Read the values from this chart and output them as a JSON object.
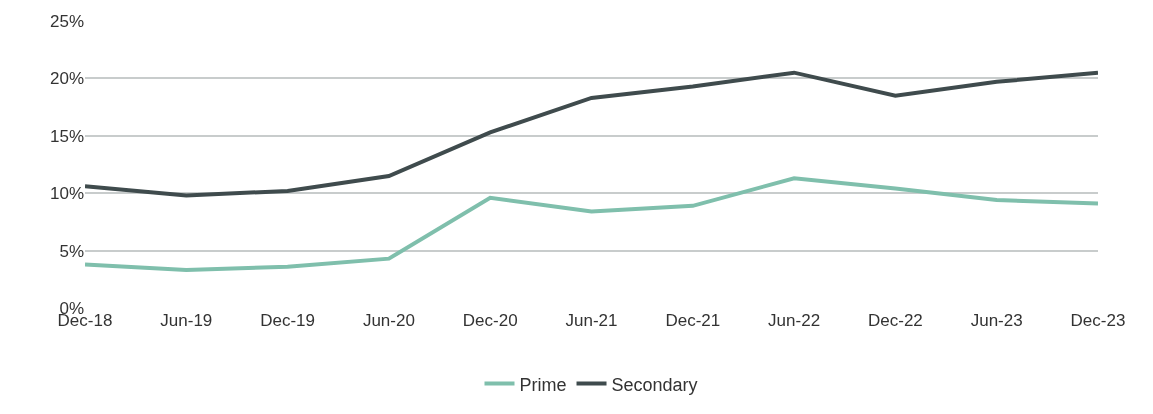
{
  "chart_data": {
    "type": "line",
    "categories": [
      "Dec-18",
      "Jun-19",
      "Dec-19",
      "Jun-20",
      "Dec-20",
      "Jun-21",
      "Dec-21",
      "Jun-22",
      "Dec-22",
      "Jun-23",
      "Dec-23"
    ],
    "series": [
      {
        "name": "Prime",
        "color": "#7fbfac",
        "values": [
          3.8,
          3.3,
          3.6,
          4.3,
          9.6,
          8.4,
          8.9,
          11.3,
          10.4,
          9.4,
          9.1
        ]
      },
      {
        "name": "Secondary",
        "color": "#3f4b4d",
        "values": [
          10.6,
          9.8,
          10.2,
          11.5,
          15.3,
          18.3,
          19.3,
          20.5,
          18.5,
          19.7,
          20.5
        ]
      }
    ],
    "ylim": [
      0,
      25
    ],
    "yticks": [
      {
        "value": 0,
        "label": "0%"
      },
      {
        "value": 5,
        "label": "5%"
      },
      {
        "value": 10,
        "label": "10%"
      },
      {
        "value": 15,
        "label": "15%"
      },
      {
        "value": 20,
        "label": "20%"
      },
      {
        "value": 25,
        "label": "25%"
      }
    ],
    "grid": "y",
    "legend": "bottom",
    "marker": "none",
    "line_style": "solid"
  }
}
